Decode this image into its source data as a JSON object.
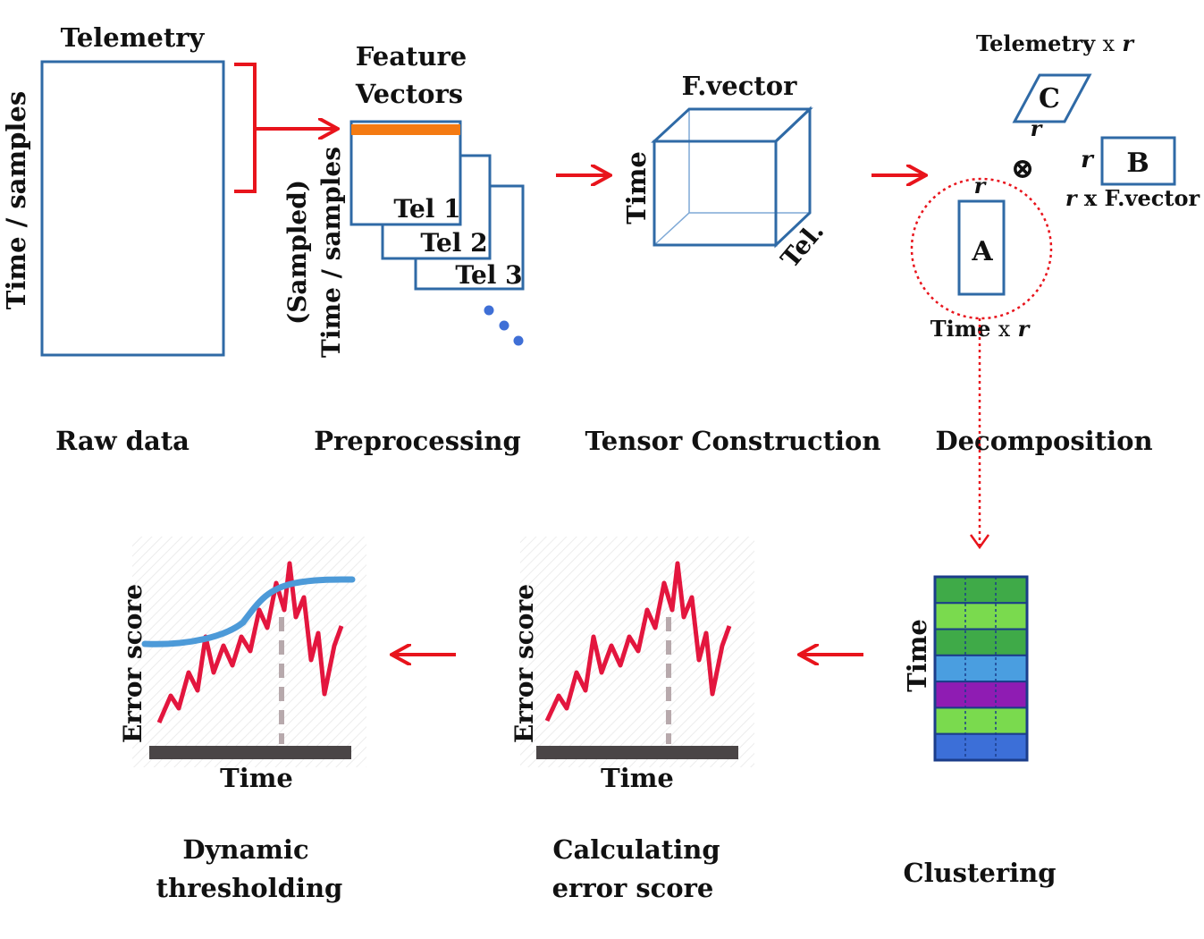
{
  "raw_data": {
    "top_label": "Telemetry",
    "side_label": "Time / samples",
    "stage_label": "Raw data"
  },
  "preprocessing": {
    "title_line1": "Feature",
    "title_line2": "Vectors",
    "side_label_line1": "(Sampled)",
    "side_label_line2": "Time / samples",
    "tel1": "Tel 1",
    "tel2": "Tel 2",
    "tel3": "Tel 3",
    "stage_label": "Preprocessing"
  },
  "tensor": {
    "top_label": "F.vector",
    "side_label": "Time",
    "depth_label": "Tel.",
    "stage_label": "Tensor Construction"
  },
  "decomposition": {
    "c_label": "C",
    "c_dim_prefix": "Telemetry",
    "b_label": "B",
    "b_dim_suffix": "x F.vector",
    "a_label": "A",
    "a_dim_prefix": "Time",
    "r": "r",
    "times": "x",
    "otimes": "⊗",
    "stage_label": "Decomposition"
  },
  "clustering": {
    "side_label": "Time",
    "stage_label": "Clustering",
    "row_colors": [
      "#3faa48",
      "#7ada4e",
      "#3faa48",
      "#4a9ee0",
      "#8f1cb3",
      "#7ada4e",
      "#3c6fd8"
    ]
  },
  "error_score": {
    "y_label": "Error score",
    "x_label": "Time",
    "stage_label_line1": "Calculating",
    "stage_label_line2": "error score"
  },
  "dynamic_threshold": {
    "y_label": "Error score",
    "x_label": "Time",
    "stage_label_line1": "Dynamic",
    "stage_label_line2": "thresholding"
  },
  "colors": {
    "arrow": "#e8141c",
    "box_stroke": "#2f6aa6",
    "feature_bar": "#f47a12",
    "error_line": "#e3163e",
    "threshold_line": "#4d9ad8",
    "dots": "#3f6fd6"
  }
}
